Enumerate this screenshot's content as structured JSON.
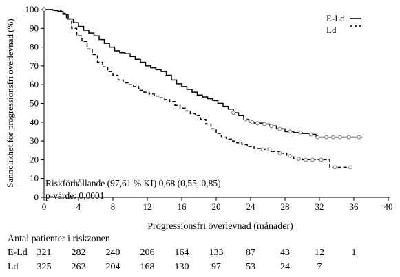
{
  "chart_data": {
    "type": "line",
    "title": "",
    "xlabel": "Progressionsfri överlevnad (månader)",
    "ylabel": "Sannolikhet för progressionsfri överlevnad (%)",
    "xlim": [
      0,
      40
    ],
    "ylim": [
      0,
      100
    ],
    "x_ticks": [
      "0",
      "4",
      "8",
      "12",
      "16",
      "20",
      "24",
      "28",
      "32",
      "36",
      "40"
    ],
    "y_ticks": [
      "0",
      "10",
      "20",
      "30",
      "40",
      "50",
      "60",
      "70",
      "80",
      "90",
      "100"
    ],
    "grid": false,
    "legend_position": "top-right",
    "series": [
      {
        "name": "E-Ld",
        "line_style": "solid",
        "color": "#000000",
        "points": [
          [
            0,
            100
          ],
          [
            1,
            99.7
          ],
          [
            1.6,
            99
          ],
          [
            2.2,
            97.5
          ],
          [
            2.8,
            95
          ],
          [
            3.4,
            93
          ],
          [
            4,
            91
          ],
          [
            4.6,
            89
          ],
          [
            5.2,
            87.5
          ],
          [
            5.8,
            86
          ],
          [
            6.4,
            84
          ],
          [
            7,
            82
          ],
          [
            7.6,
            80
          ],
          [
            8.2,
            78
          ],
          [
            8.8,
            77
          ],
          [
            9.4,
            76.5
          ],
          [
            10,
            75
          ],
          [
            10.6,
            73.5
          ],
          [
            11.2,
            72
          ],
          [
            11.8,
            70
          ],
          [
            12.4,
            69
          ],
          [
            13,
            68
          ],
          [
            13.6,
            67
          ],
          [
            14.2,
            65
          ],
          [
            14.8,
            62.5
          ],
          [
            15.4,
            60.5
          ],
          [
            16,
            59
          ],
          [
            16.6,
            57.5
          ],
          [
            17.2,
            56
          ],
          [
            17.8,
            54.5
          ],
          [
            18.4,
            53.5
          ],
          [
            19,
            52.5
          ],
          [
            19.6,
            51.5
          ],
          [
            20.2,
            50
          ],
          [
            20.8,
            48.5
          ],
          [
            21.4,
            47
          ],
          [
            22,
            45
          ],
          [
            22.6,
            43.5
          ],
          [
            23.2,
            41.5
          ],
          [
            23.8,
            40
          ],
          [
            24.4,
            39.5
          ],
          [
            25.4,
            39
          ],
          [
            26.2,
            38
          ],
          [
            27,
            36.5
          ],
          [
            28,
            35
          ],
          [
            29,
            34.5
          ],
          [
            30,
            34
          ],
          [
            31,
            33.5
          ],
          [
            31.6,
            32
          ],
          [
            33,
            32
          ],
          [
            35,
            32
          ],
          [
            37,
            32
          ]
        ],
        "censored_x": [
          22,
          23.4,
          24.2,
          24.8,
          25.6,
          26.4,
          27.4,
          28.6,
          29.8,
          31,
          31.8,
          32.8,
          33.6,
          34.4,
          35.4,
          36.6
        ]
      },
      {
        "name": "Ld",
        "line_style": "dashed",
        "color": "#000000",
        "points": [
          [
            0,
            100
          ],
          [
            1,
            99.5
          ],
          [
            2,
            98
          ],
          [
            2.6,
            95
          ],
          [
            3.2,
            90
          ],
          [
            3.8,
            86
          ],
          [
            4.4,
            83
          ],
          [
            5,
            79
          ],
          [
            5.6,
            76
          ],
          [
            6.2,
            72
          ],
          [
            6.8,
            69.5
          ],
          [
            7.4,
            67
          ],
          [
            8,
            65
          ],
          [
            8.6,
            62.5
          ],
          [
            9.2,
            61
          ],
          [
            9.8,
            60
          ],
          [
            10.4,
            59
          ],
          [
            11,
            57
          ],
          [
            11.6,
            56
          ],
          [
            12.2,
            55
          ],
          [
            12.8,
            54
          ],
          [
            13.4,
            53
          ],
          [
            14,
            52
          ],
          [
            14.6,
            51
          ],
          [
            15.2,
            49
          ],
          [
            15.8,
            47.5
          ],
          [
            16.4,
            46
          ],
          [
            17,
            44.5
          ],
          [
            17.6,
            43.5
          ],
          [
            18.2,
            41.5
          ],
          [
            18.8,
            39
          ],
          [
            19.4,
            36.5
          ],
          [
            20,
            34
          ],
          [
            20.6,
            32
          ],
          [
            21.2,
            31
          ],
          [
            21.8,
            30
          ],
          [
            22.4,
            29
          ],
          [
            23,
            28
          ],
          [
            23.6,
            27
          ],
          [
            24.4,
            26
          ],
          [
            25.4,
            25.5
          ],
          [
            26.4,
            24.5
          ],
          [
            27.4,
            23.5
          ],
          [
            28.2,
            22
          ],
          [
            29,
            20.5
          ],
          [
            30,
            20
          ],
          [
            31.5,
            20
          ],
          [
            32.8,
            20
          ],
          [
            33.2,
            16
          ],
          [
            35.8,
            16
          ]
        ],
        "censored_x": [
          25.4,
          26.2,
          27.4,
          28.6,
          29.6,
          30.4,
          31.2,
          32.2,
          33.8,
          35.6
        ]
      }
    ],
    "annotations": [
      "Riskförhållande (97,61 % KI) 0,68 (0,55, 0,85)",
      "p-värde: 0,0001"
    ],
    "risk_table": {
      "title": "Antal patienter i riskzonen",
      "rows": [
        {
          "label": "E-Ld",
          "values": [
            "321",
            "282",
            "240",
            "206",
            "164",
            "133",
            "87",
            "43",
            "12",
            "1"
          ]
        },
        {
          "label": "Ld",
          "values": [
            "325",
            "262",
            "204",
            "168",
            "130",
            "97",
            "53",
            "24",
            "7",
            ""
          ]
        }
      ]
    }
  }
}
